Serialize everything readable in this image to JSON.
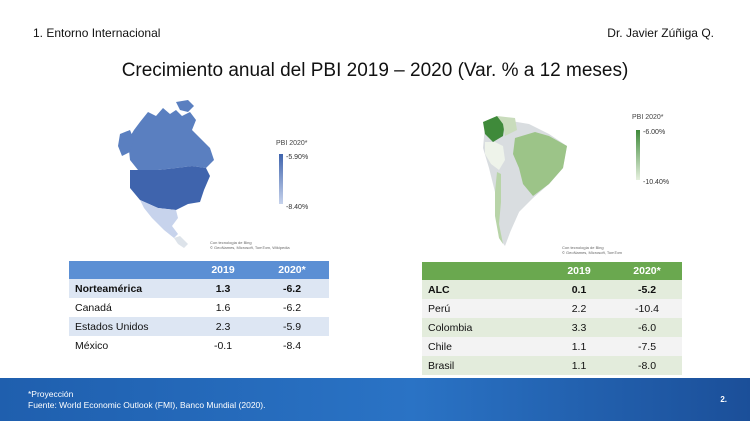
{
  "header": {
    "section": "1. Entorno Internacional",
    "author": "Dr. Javier Zúñiga Q."
  },
  "title": "Crecimiento anual del PBI 2019 – 2020 (Var. % a 12 meses)",
  "north_america": {
    "legend": {
      "title": "PBI 2020*",
      "max": "-5.90%",
      "min": "-8.40%"
    },
    "credit": [
      "Con tecnología de Bing",
      "© GeoNames, Microsoft, TomTom, Wikipedia"
    ],
    "colors": {
      "header": "#5b8fd4",
      "map_dark": "#3f64ad",
      "map_mid": "#5a7fc0",
      "map_light": "#c7d3ec"
    },
    "table": {
      "columns": [
        "",
        "2019",
        "2020*"
      ],
      "rows": [
        {
          "name": "Norteamérica",
          "v2019": "1.3",
          "v2020": "-6.2"
        },
        {
          "name": "Canadá",
          "v2019": "1.6",
          "v2020": "-6.2"
        },
        {
          "name": "Estados Unidos",
          "v2019": "2.3",
          "v2020": "-5.9"
        },
        {
          "name": "México",
          "v2019": "-0.1",
          "v2020": "-8.4"
        }
      ]
    }
  },
  "latin_america": {
    "legend": {
      "title": "PBI 2020*",
      "max": "-6.00%",
      "min": "-10.40%"
    },
    "credit": [
      "Con tecnología de Bing",
      "© GeoNames, Microsoft, TomTom"
    ],
    "colors": {
      "header": "#6aa84f",
      "map_dark": "#3f8a3a",
      "map_mid": "#9cc488",
      "map_light": "#d9ead0"
    },
    "table": {
      "columns": [
        "",
        "2019",
        "2020*"
      ],
      "rows": [
        {
          "name": "ALC",
          "v2019": "0.1",
          "v2020": "-5.2"
        },
        {
          "name": "Perú",
          "v2019": "2.2",
          "v2020": "-10.4"
        },
        {
          "name": "Colombia",
          "v2019": "3.3",
          "v2020": "-6.0"
        },
        {
          "name": "Chile",
          "v2019": "1.1",
          "v2020": "-7.5"
        },
        {
          "name": "Brasil",
          "v2019": "1.1",
          "v2020": "-8.0"
        }
      ]
    }
  },
  "footer": {
    "note": "*Proyección",
    "source": "Fuente: World Economic Outlook (FMI), Banco Mundial (2020).",
    "page": "2."
  }
}
